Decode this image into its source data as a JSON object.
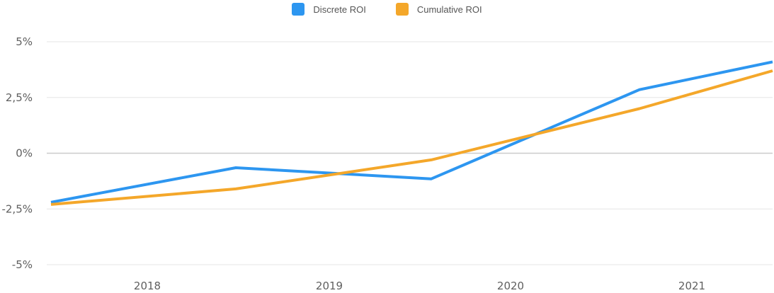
{
  "chart_data": {
    "type": "line",
    "categories": [
      "2018",
      "2019",
      "2020",
      "2021"
    ],
    "x": [
      "2017 Q2",
      "2018 Q3",
      "2019 Q2",
      "2020 Q3",
      "2021 Q3"
    ],
    "series": [
      {
        "name": "Discrete ROI",
        "color": "#2d96f0",
        "values": [
          -2.2,
          -0.65,
          -1.15,
          2.85,
          4.1
        ]
      },
      {
        "name": "Cumulative ROI",
        "color": "#f4a72a",
        "values": [
          -2.3,
          -1.6,
          -0.3,
          2.0,
          3.7
        ]
      }
    ],
    "y_ticks": [
      "5%",
      "2,5%",
      "0%",
      "-2,5%",
      "-5%"
    ],
    "ylim": [
      -5,
      5
    ],
    "grid": true,
    "legend_position": "top-center",
    "title": "",
    "xlabel": "",
    "ylabel": ""
  },
  "legend": {
    "items": [
      {
        "label": "Discrete ROI",
        "color": "#2d96f0"
      },
      {
        "label": "Cumulative ROI",
        "color": "#f4a72a"
      }
    ]
  },
  "colors": {
    "grid": "#e6e6e6",
    "zero_line": "#cccccc",
    "tick_text": "#5f5f5f"
  }
}
